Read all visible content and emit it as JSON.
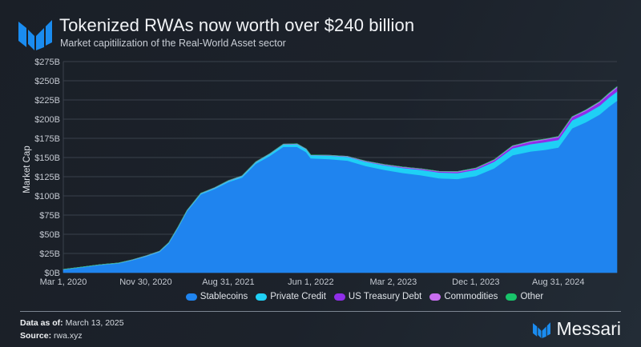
{
  "header": {
    "title": "Tokenized RWAs now worth over $240 billion",
    "subtitle": "Market capitilization of the Real-World Asset sector"
  },
  "footer": {
    "data_as_of_label": "Data as of:",
    "data_as_of_value": "March 13, 2025",
    "source_label": "Source:",
    "source_value": "rwa.xyz",
    "brand_name": "Messari"
  },
  "colors": {
    "Stablecoins": "#1f84ef",
    "Private Credit": "#1fd0f5",
    "US Treasury Debt": "#8f2ee8",
    "Commodities": "#c86ef0",
    "Other": "#18c46a",
    "brand": "#1a8cf0"
  },
  "chart_data": {
    "type": "area",
    "stacked": true,
    "title": "Tokenized RWAs now worth over $240 billion",
    "subtitle": "Market capitilization of the Real-World Asset sector",
    "xlabel": "",
    "ylabel": "Market Cap",
    "ylim": [
      0,
      275
    ],
    "yticks": [
      0,
      25,
      50,
      75,
      100,
      125,
      150,
      175,
      200,
      225,
      250,
      275
    ],
    "ytick_labels": [
      "$0B",
      "$25B",
      "$50B",
      "$75B",
      "$100B",
      "$125B",
      "$150B",
      "$175B",
      "$200B",
      "$225B",
      "$250B",
      "$275B"
    ],
    "x_range_months": [
      0,
      60.4
    ],
    "xticks_months": [
      0,
      9,
      18,
      27,
      36,
      45,
      54
    ],
    "xtick_labels": [
      "Mar 1, 2020",
      "Nov 30, 2020",
      "Aug 31, 2021",
      "Jun 1, 2022",
      "Mar 2, 2023",
      "Dec 1, 2023",
      "Aug 31, 2024"
    ],
    "grid": true,
    "legend_position": "bottom",
    "x_months": [
      0,
      2,
      4,
      6,
      7.5,
      9,
      10.5,
      11.5,
      12.5,
      13.5,
      15,
      16.5,
      18,
      19.5,
      21,
      22.5,
      24,
      25.5,
      26.5,
      27,
      29,
      31,
      33,
      35,
      37,
      39,
      41,
      43,
      45,
      47,
      49,
      51,
      52.5,
      54,
      55.5,
      57,
      58.5,
      59.5,
      60.4
    ],
    "series": [
      {
        "name": "Stablecoins",
        "values": [
          4,
          7,
          10,
          12,
          16,
          21,
          27,
          38,
          58,
          80,
          102,
          109,
          118,
          124,
          142,
          152,
          164,
          164,
          157,
          149,
          148,
          146,
          139,
          134,
          130,
          127,
          123,
          122,
          126,
          136,
          153,
          158,
          160,
          163,
          188,
          196,
          206,
          216,
          224
        ]
      },
      {
        "name": "Private Credit",
        "values": [
          0.3,
          0.3,
          0.4,
          0.5,
          0.6,
          0.7,
          0.8,
          0.9,
          1,
          1,
          1.2,
          1.3,
          1.5,
          1.8,
          2,
          2.5,
          3,
          3.5,
          3.8,
          4,
          4.5,
          5,
          5.5,
          6,
          6.5,
          7,
          7.5,
          7.8,
          8,
          8.5,
          9,
          9.5,
          10,
          10,
          10.5,
          11,
          11.5,
          11.8,
          12
        ]
      },
      {
        "name": "US Treasury Debt",
        "values": [
          0,
          0,
          0,
          0,
          0,
          0,
          0,
          0,
          0,
          0,
          0,
          0,
          0,
          0,
          0,
          0,
          0,
          0,
          0,
          0,
          0.1,
          0.2,
          0.3,
          0.5,
          0.7,
          0.9,
          1,
          1.3,
          1.6,
          2,
          2.5,
          3,
          3.2,
          3.5,
          3.8,
          4,
          4.3,
          4.6,
          5
        ]
      },
      {
        "name": "Commodities",
        "values": [
          0.1,
          0.1,
          0.1,
          0.2,
          0.2,
          0.3,
          0.3,
          0.3,
          0.4,
          0.4,
          0.4,
          0.5,
          0.5,
          0.5,
          0.5,
          0.5,
          0.5,
          0.5,
          0.5,
          0.5,
          0.5,
          0.5,
          0.6,
          0.6,
          0.6,
          0.6,
          0.6,
          0.7,
          0.7,
          0.7,
          0.8,
          0.8,
          0.8,
          0.9,
          0.9,
          1,
          1,
          1.1,
          1.2
        ]
      },
      {
        "name": "Other",
        "values": [
          0,
          0,
          0,
          0,
          0,
          0,
          0,
          0,
          0,
          0,
          0,
          0,
          0,
          0,
          0,
          0,
          0,
          0,
          0,
          0,
          0,
          0,
          0,
          0,
          0,
          0,
          0,
          0,
          0.1,
          0.1,
          0.1,
          0.1,
          0.1,
          0.1,
          0.1,
          0.1,
          0.2,
          0.2,
          0.2
        ]
      }
    ]
  }
}
